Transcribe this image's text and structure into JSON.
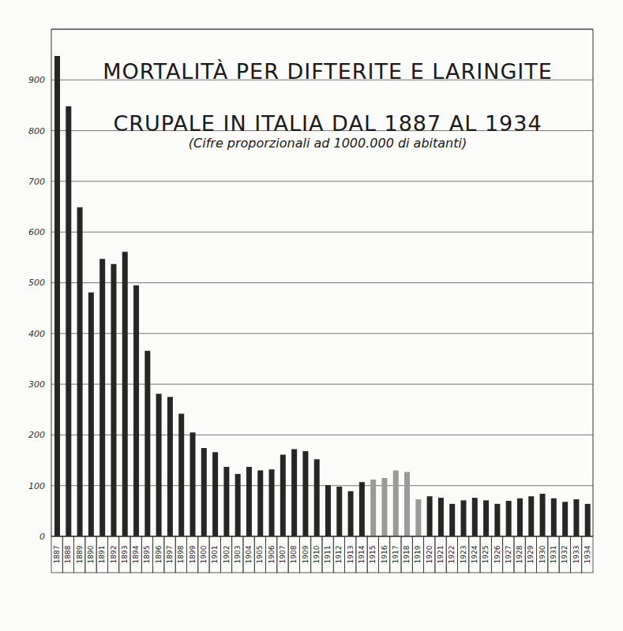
{
  "chart_data": {
    "type": "bar",
    "title": [
      "MORTALITÀ PER DIFTERITE E LARINGITE",
      "CRUPALE IN ITALIA DAL 1887 AL 1934"
    ],
    "subtitle": "(Cifre proporzionali ad 1000.000 di abitanti)",
    "categories": [
      "1887",
      "1888",
      "1889",
      "1890",
      "1891",
      "1892",
      "1893",
      "1894",
      "1895",
      "1896",
      "1897",
      "1898",
      "1899",
      "1900",
      "1901",
      "1902",
      "1903",
      "1904",
      "1905",
      "1906",
      "1907",
      "1908",
      "1909",
      "1910",
      "1911",
      "1912",
      "1913",
      "1914",
      "1915",
      "1916",
      "1917",
      "1918",
      "1919",
      "1920",
      "1921",
      "1922",
      "1923",
      "1924",
      "1925",
      "1926",
      "1927",
      "1928",
      "1929",
      "1930",
      "1931",
      "1932",
      "1933",
      "1934"
    ],
    "values": [
      947,
      848,
      649,
      481,
      547,
      537,
      561,
      495,
      366,
      281,
      275,
      242,
      205,
      174,
      166,
      137,
      123,
      137,
      130,
      132,
      161,
      172,
      168,
      152,
      101,
      98,
      89,
      107,
      112,
      115,
      130,
      127,
      73,
      79,
      76,
      64,
      71,
      76,
      71,
      64,
      70,
      75,
      79,
      84,
      75,
      68,
      73,
      64
    ],
    "colors": [
      "#262626",
      "#262626",
      "#262626",
      "#262626",
      "#262626",
      "#262626",
      "#262626",
      "#262626",
      "#262626",
      "#262626",
      "#262626",
      "#262626",
      "#262626",
      "#262626",
      "#262626",
      "#262626",
      "#262626",
      "#262626",
      "#262626",
      "#262626",
      "#262626",
      "#262626",
      "#262626",
      "#262626",
      "#262626",
      "#262626",
      "#262626",
      "#262626",
      "#9a9a9a",
      "#9a9a9a",
      "#9a9a9a",
      "#9a9a9a",
      "#9a9a9a",
      "#262626",
      "#262626",
      "#262626",
      "#262626",
      "#262626",
      "#262626",
      "#262626",
      "#262626",
      "#262626",
      "#262626",
      "#262626",
      "#262626",
      "#262626",
      "#262626",
      "#262626"
    ],
    "ylim": [
      0,
      1000
    ],
    "yticks": [
      0,
      100,
      200,
      300,
      400,
      500,
      600,
      700,
      800,
      900
    ],
    "grid": true
  }
}
